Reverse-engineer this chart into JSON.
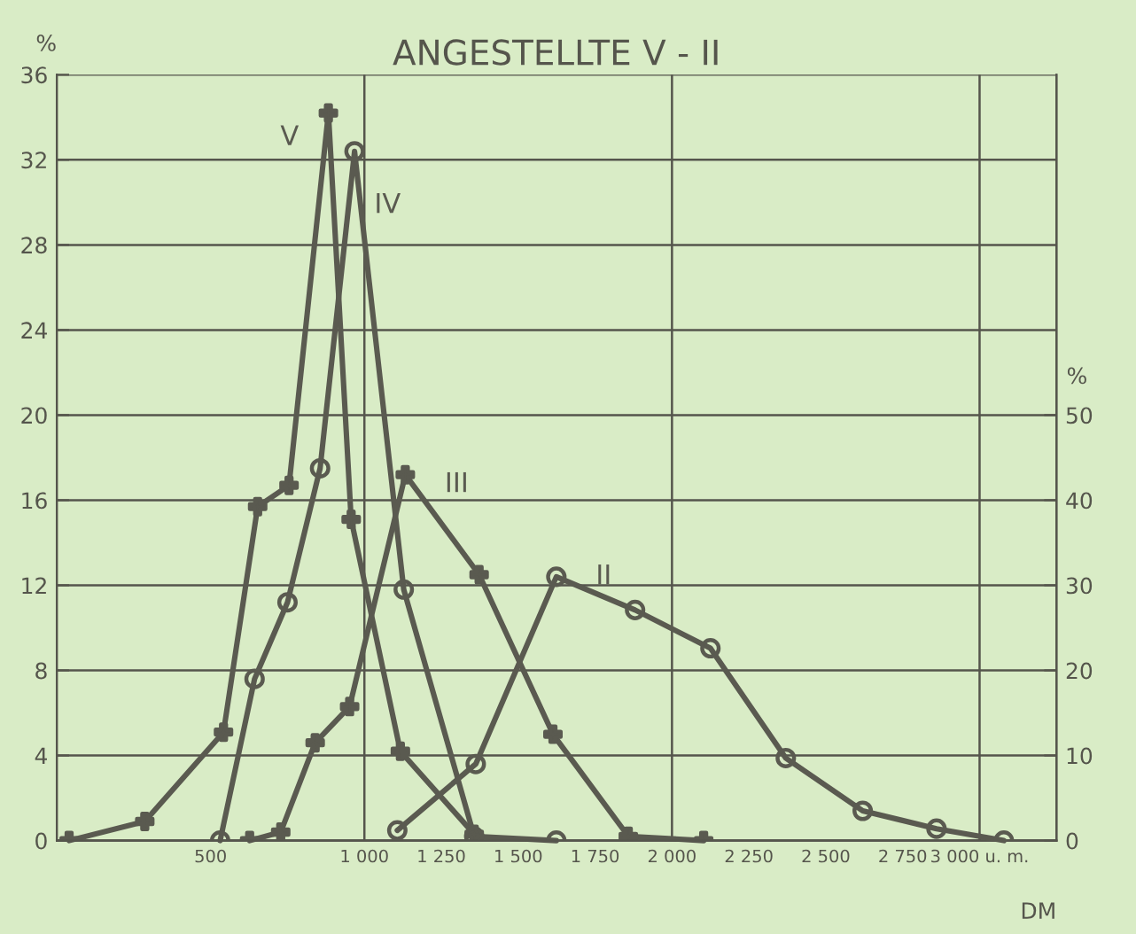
{
  "chart_data": {
    "type": "line",
    "title": "ANGESTELLTE V - II",
    "xlabel": "DM",
    "ylabel": "%",
    "y2label": "%",
    "xlim": [
      0,
      3250
    ],
    "xticks": [
      500,
      {
        "value": 1000,
        "label": "1 000"
      },
      {
        "value": 1250,
        "label": "1 250"
      },
      {
        "value": 1500,
        "label": "1 500"
      },
      {
        "value": 1750,
        "label": "1 750"
      },
      {
        "value": 2000,
        "label": "2 000"
      },
      {
        "value": 2250,
        "label": "2 250"
      },
      {
        "value": 2500,
        "label": "2 500"
      },
      {
        "value": 2750,
        "label": "2 750"
      },
      {
        "value": 3000,
        "label": "3 000 u. m."
      }
    ],
    "ylim": [
      0,
      36
    ],
    "yticks": [
      0,
      4,
      8,
      12,
      16,
      20,
      24,
      28,
      32,
      36
    ],
    "y2lim": [
      0,
      90
    ],
    "y2ticks": [
      0,
      10,
      20,
      30,
      40,
      50
    ],
    "grid": "y",
    "legend": false,
    "line_style": "solid",
    "ref_lines": [
      {
        "axis": "x",
        "value": 1000,
        "label": null
      },
      {
        "axis": "x",
        "value": 2000,
        "label": null
      },
      {
        "axis": "x",
        "value": 3000,
        "label": null
      }
    ],
    "series": [
      {
        "name": "V",
        "color": "#5a5a50",
        "marker": "cross",
        "x": [
          40,
          286,
          542,
          653,
          755,
          883,
          957,
          1117,
          1357
        ],
        "values": [
          0,
          0.9,
          5.1,
          15.7,
          16.7,
          34.2,
          15.1,
          4.2,
          0.3
        ]
      },
      {
        "name": "IV",
        "color": "#5a5a50",
        "marker": "circle",
        "x": [
          531,
          643,
          750,
          856,
          968,
          1128,
          1357,
          1624
        ],
        "values": [
          0,
          7.6,
          11.2,
          17.5,
          32.4,
          11.8,
          0.2,
          0
        ]
      },
      {
        "name": "III",
        "color": "#5a5a50",
        "marker": "cross",
        "x": [
          627,
          728,
          840,
          952,
          1133,
          1373,
          1613,
          1858,
          2103
        ],
        "values": [
          0,
          0.4,
          4.6,
          6.3,
          17.2,
          12.5,
          5.0,
          0.2,
          0
        ]
      },
      {
        "name": "II",
        "color": "#5a5a50",
        "marker": "circle",
        "axis": "y2",
        "x": [
          1107,
          1362,
          1624,
          1880,
          2125,
          2370,
          2620,
          2860,
          3079
        ],
        "values": [
          1.2,
          9.0,
          31.0,
          27.1,
          22.6,
          9.7,
          3.5,
          1.4,
          0
        ]
      }
    ]
  }
}
